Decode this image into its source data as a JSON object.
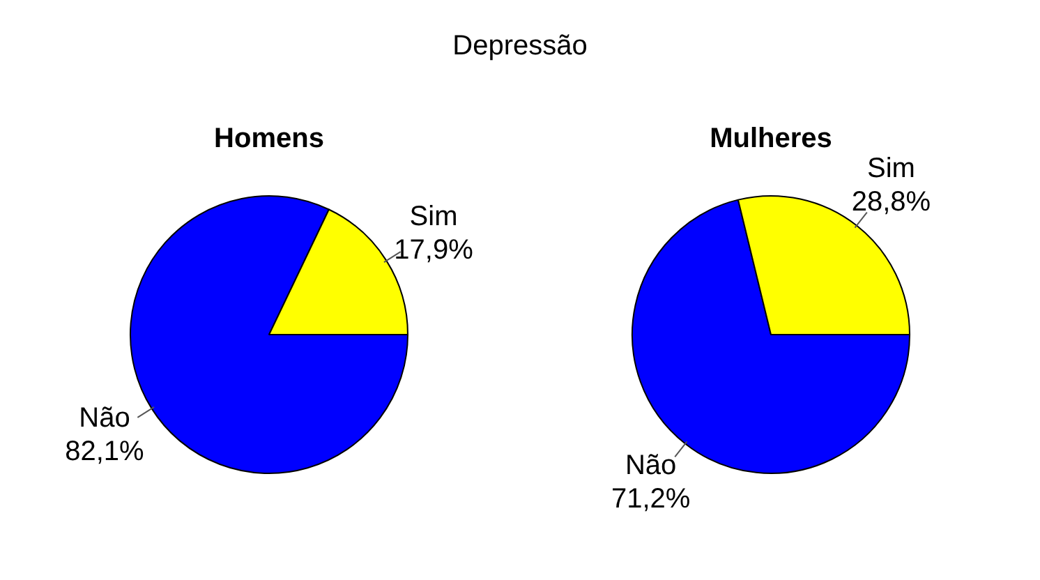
{
  "chart_data": [
    {
      "type": "other",
      "title": "Depressão"
    },
    {
      "type": "pie",
      "title": "Homens",
      "categories": [
        "Não",
        "Sim"
      ],
      "values": [
        82.1,
        17.9
      ],
      "colors": [
        "#0000ff",
        "#ffff00"
      ],
      "value_labels": [
        "82,1%",
        "17,9%"
      ],
      "legend": false
    },
    {
      "type": "pie",
      "title": "Mulheres",
      "categories": [
        "Não",
        "Sim"
      ],
      "values": [
        71.2,
        28.8
      ],
      "colors": [
        "#0000ff",
        "#ffff00"
      ],
      "value_labels": [
        "71,2%",
        "28,8%"
      ],
      "legend": false
    }
  ]
}
